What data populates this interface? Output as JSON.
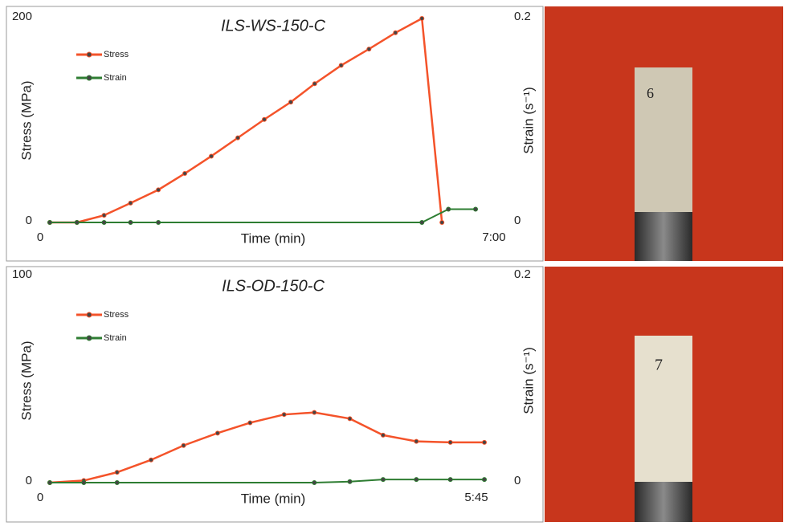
{
  "chart_data": [
    {
      "type": "line",
      "title": "ILS-WS-150-C",
      "photo_label": "6",
      "x_label": "Time (min)",
      "y_label": "Stress (MPa)",
      "y2_label": "Strain (s⁻¹)",
      "xlim": [
        0,
        7
      ],
      "xticks": [
        0,
        {
          "value": 7,
          "label": "7:00"
        }
      ],
      "ylim": [
        0,
        200
      ],
      "yticks": [
        0,
        200
      ],
      "y2lim": [
        0,
        0.2
      ],
      "y2ticks": [
        0,
        0.2
      ],
      "series": [
        {
          "name": "Stress",
          "color": "#f4532a",
          "x": [
            0,
            0.42,
            0.84,
            1.25,
            1.68,
            2.09,
            2.5,
            2.91,
            3.32,
            3.73,
            4.1,
            4.51,
            4.94,
            5.35,
            5.76,
            6.07
          ],
          "values": [
            0,
            0,
            7,
            19,
            32,
            48,
            65,
            83,
            101,
            118,
            136,
            154,
            170,
            186,
            200,
            0
          ]
        },
        {
          "name": "Strain",
          "color": "#2e7d32",
          "axis": "y2",
          "x": [
            0,
            0.42,
            0.84,
            1.25,
            1.68,
            5.76,
            6.17,
            6.59
          ],
          "values": [
            0,
            0,
            0,
            0,
            0,
            0,
            0.013,
            0.013
          ]
        }
      ]
    },
    {
      "type": "line",
      "title": "ILS-OD-150-C",
      "photo_label": "7",
      "x_label": "Time (min)",
      "y_label": "Stress (MPa)",
      "y2_label": "Strain (s⁻¹)",
      "xlim": [
        0,
        5.75
      ],
      "xticks": [
        0,
        {
          "value": 5.75,
          "label": "5:45"
        }
      ],
      "ylim": [
        0,
        100
      ],
      "yticks": [
        0,
        100
      ],
      "y2lim": [
        0,
        0.2
      ],
      "y2ticks": [
        0,
        0.2
      ],
      "series": [
        {
          "name": "Stress",
          "color": "#f4532a",
          "x": [
            0,
            0.45,
            0.89,
            1.34,
            1.77,
            2.22,
            2.65,
            3.1,
            3.5,
            3.97,
            4.41,
            4.85,
            5.3,
            5.75
          ],
          "values": [
            0,
            1,
            5,
            11,
            18,
            24,
            29,
            33,
            34,
            31,
            23,
            20,
            19.5,
            19.5
          ]
        },
        {
          "name": "Strain",
          "color": "#2e7d32",
          "axis": "y2",
          "x": [
            0,
            0.45,
            0.89,
            3.5,
            3.97,
            4.41,
            4.85,
            5.3,
            5.75
          ],
          "values": [
            0,
            0,
            0,
            0,
            0.001,
            0.003,
            0.003,
            0.003,
            0.003
          ]
        }
      ]
    }
  ]
}
